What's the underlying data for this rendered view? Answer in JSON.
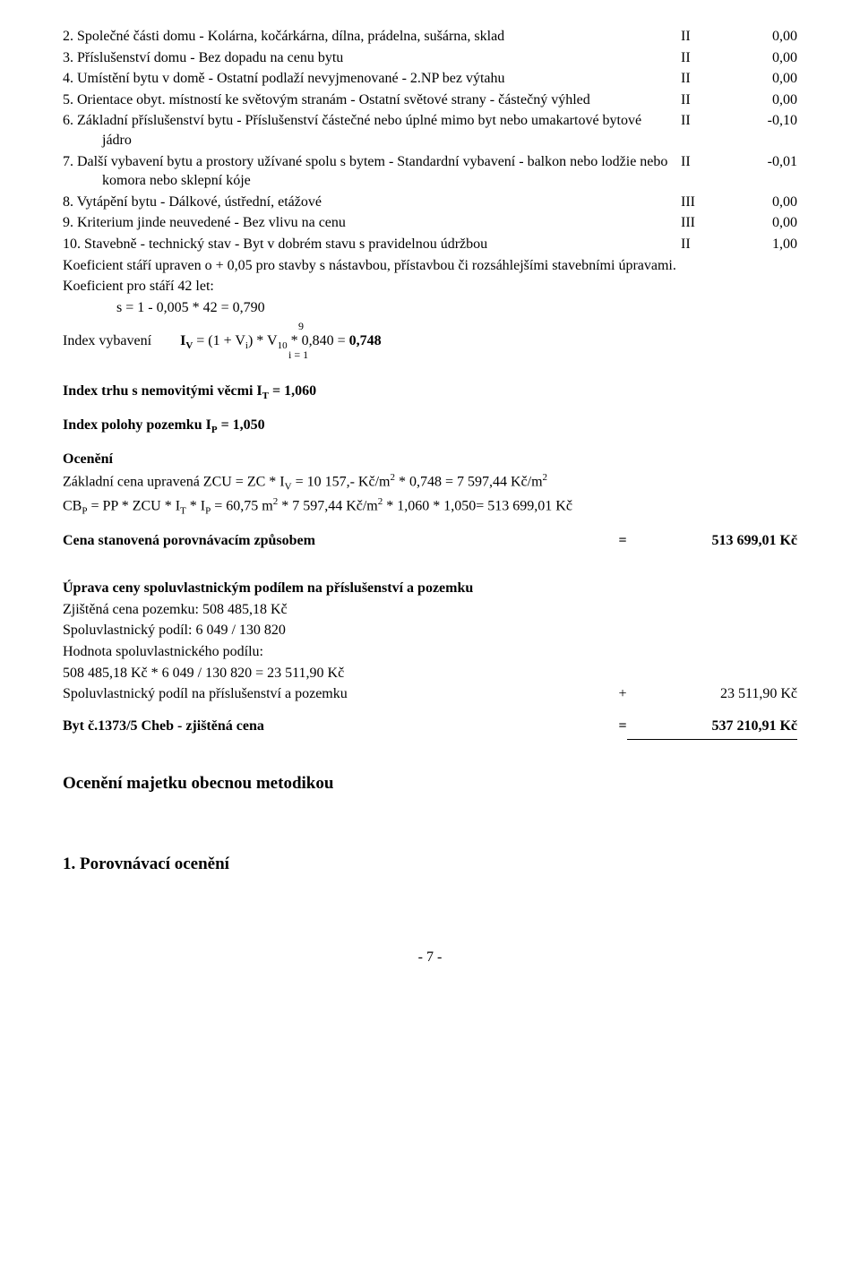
{
  "items": [
    {
      "num": "2.",
      "text": "Společné části domu - Kolárna, kočárkárna, dílna, prádelna, sušárna, sklad",
      "colA": "II",
      "colB": "0,00",
      "wrap": true
    },
    {
      "num": "3.",
      "text": "Příslušenství domu - Bez dopadu na cenu bytu",
      "colA": "II",
      "colB": "0,00"
    },
    {
      "num": "4.",
      "text": "Umístění bytu v domě - Ostatní podlaží nevyjmenované - 2.NP bez výtahu",
      "colA": "II",
      "colB": "0,00",
      "wrap": true
    },
    {
      "num": "5.",
      "text": "Orientace obyt. místností ke světovým stranám - Ostatní světové strany - částečný výhled",
      "colA": "II",
      "colB": "0,00",
      "wrap": true
    },
    {
      "num": "6.",
      "text": "Základní příslušenství bytu - Příslušenství částečné nebo úplné mimo byt nebo umakartové bytové jádro",
      "colA": "II",
      "colB": "-0,10",
      "wrap": true
    },
    {
      "num": "7.",
      "text": "Další vybavení bytu a prostory užívané spolu s bytem - Standardní vybavení - balkon nebo lodžie nebo komora nebo sklepní kóje",
      "colA": "II",
      "colB": "-0,01",
      "wrap": true
    },
    {
      "num": "8.",
      "text": "Vytápění bytu - Dálkové, ústřední, etážové",
      "colA": "III",
      "colB": "0,00"
    },
    {
      "num": "9.",
      "text": "Kriterium jinde neuvedené - Bez vlivu na cenu",
      "colA": "III",
      "colB": "0,00"
    },
    {
      "num": "10.",
      "text": "Stavebně - technický stav - Byt v dobrém stavu s pravidelnou údržbou",
      "colA": "II",
      "colB": "1,00"
    }
  ],
  "afterItems1": "Koeficient stáří upraven o + 0,05 pro stavby s nástavbou, přístavbou či rozsáhlejšími stavebními úpravami.",
  "afterItems2": "Koeficient pro stáří 42 let:",
  "sFormula": "s = 1 - 0,005 * 42 = 0,790",
  "ivLabel": "Index vybavení",
  "ivFormula": " = (1 +      V",
  "ivTail": ") * V",
  "ivResult": " * 0,840 = ",
  "ivValue": "0,748",
  "sumTop": "9",
  "sumBot": "i = 1",
  "itLine": "Index trhu s nemovitými věcmi I",
  "itVal": " = 1,060",
  "ipLine": "Index polohy pozemku I",
  "ipVal": " = 1,050",
  "oceneni": "Ocenění",
  "zcuLine": "Základní cena upravená ZCU = ZC * I",
  "zcuTail": " = 10 157,- Kč/m",
  "zcuMid": " * 0,748 = 7 597,44 Kč/m",
  "cbLine": "CB",
  "cbMid": " = PP * ZCU * I",
  "cbMid2": " * I",
  "cbTail": " = 60,75 m",
  "cbTail2": " * 7 597,44 Kč/m",
  "cbTail3": " * 1,060 * 1,050= 513 699,01 Kč",
  "cenaLabel": "Cena stanovená porovnávacím způsobem",
  "cenaEq": "=",
  "cenaVal": "513 699,01 Kč",
  "upravaHeading": "Úprava ceny spoluvlastnickým podílem na příslušenství a pozemku",
  "u1": "Zjištěná cena pozemku: 508 485,18 Kč",
  "u2": "Spoluvlastnický podíl: 6 049 / 130 820",
  "u3": "Hodnota spoluvlastnického podílu:",
  "u4": "508 485,18 Kč * 6 049 / 130 820  = 23 511,90 Kč",
  "u5label": "Spoluvlastnický podíl na příslušenství a pozemku",
  "u5eq": "+",
  "u5val": "23 511,90 Kč",
  "bytLabel": "Byt č.1373/5 Cheb - zjištěná cena",
  "bytEq": "=",
  "bytVal": "537 210,91 Kč",
  "metodikaHeading": "Ocenění majetku obecnou metodikou",
  "porovHeading": "1. Porovnávací ocenění",
  "footer": "- 7 -"
}
